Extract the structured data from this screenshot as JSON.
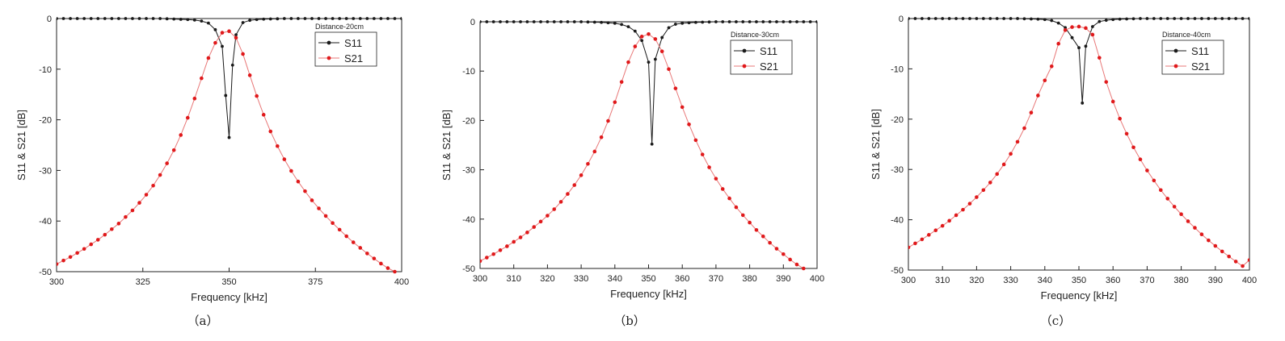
{
  "colors": {
    "s11": "#1a1a1a",
    "s21": "#e0191b",
    "s21_line": "#e87878",
    "axis": "#222222"
  },
  "chart_data": [
    {
      "type": "line",
      "caption": "（a）",
      "legend_title": "Distance-20cm",
      "legend_position": "top-right",
      "xlabel": "Frequency [kHz]",
      "ylabel": "S11 & S21 [dB]",
      "xlim": [
        300,
        400
      ],
      "ylim": [
        -50,
        0
      ],
      "xticks": [
        300,
        325,
        350,
        375,
        400
      ],
      "xtick_labels": [
        "300",
        "325",
        "350",
        "375",
        "400"
      ],
      "yticks": [
        0,
        -10,
        -20,
        -30,
        -40,
        -50
      ],
      "ytick_labels": [
        "0",
        "-10",
        "-20",
        "-30",
        "-40",
        "-50"
      ],
      "grid": false,
      "series": [
        {
          "name": "S11",
          "x": [
            300,
            302,
            304,
            306,
            308,
            310,
            312,
            314,
            316,
            318,
            320,
            322,
            324,
            326,
            328,
            330,
            332,
            334,
            336,
            338,
            340,
            342,
            344,
            346,
            348,
            349,
            350,
            351,
            352,
            354,
            356,
            358,
            360,
            362,
            364,
            366,
            368,
            370,
            372,
            374,
            376,
            378,
            380,
            382,
            384,
            386,
            388,
            390,
            392,
            394,
            396,
            398,
            400
          ],
          "y": [
            0,
            0,
            0,
            0,
            0,
            0,
            0,
            0,
            0,
            0,
            0,
            0,
            0,
            0,
            0,
            0,
            -0.05,
            -0.1,
            -0.15,
            -0.2,
            -0.3,
            -0.5,
            -0.9,
            -2.2,
            -5.5,
            -15.2,
            -23.5,
            -9.2,
            -3.2,
            -0.8,
            -0.35,
            -0.2,
            -0.12,
            -0.08,
            -0.05,
            0,
            0,
            0,
            0,
            0,
            0,
            0,
            0,
            0,
            0,
            0,
            0,
            0,
            0,
            0,
            0,
            0,
            0
          ]
        },
        {
          "name": "S21",
          "x": [
            300,
            302,
            304,
            306,
            308,
            310,
            312,
            314,
            316,
            318,
            320,
            322,
            324,
            326,
            328,
            330,
            332,
            334,
            336,
            338,
            340,
            342,
            344,
            346,
            348,
            350,
            352,
            354,
            356,
            358,
            360,
            362,
            364,
            366,
            368,
            370,
            372,
            374,
            376,
            378,
            380,
            382,
            384,
            386,
            388,
            390,
            392,
            394,
            396,
            398
          ],
          "y": [
            -48.5,
            -47.8,
            -47.1,
            -46.3,
            -45.5,
            -44.6,
            -43.7,
            -42.7,
            -41.6,
            -40.5,
            -39.2,
            -37.9,
            -36.4,
            -34.8,
            -33.0,
            -30.9,
            -28.6,
            -26.0,
            -23.0,
            -19.6,
            -15.8,
            -11.8,
            -7.8,
            -4.8,
            -2.8,
            -2.5,
            -3.8,
            -7.0,
            -11.2,
            -15.3,
            -19.0,
            -22.3,
            -25.2,
            -27.8,
            -30.1,
            -32.2,
            -34.1,
            -35.9,
            -37.5,
            -39.0,
            -40.4,
            -41.7,
            -43.0,
            -44.2,
            -45.3,
            -46.4,
            -47.4,
            -48.4,
            -49.3,
            -50.0
          ]
        }
      ]
    },
    {
      "type": "line",
      "caption": "（b）",
      "legend_title": "Distance-30cm",
      "legend_position": "top-right",
      "xlabel": "Frequency [kHz]",
      "ylabel": "S11 & S21 [dB]",
      "xlim": [
        300,
        400
      ],
      "ylim": [
        -50,
        0
      ],
      "xticks": [
        300,
        310,
        320,
        330,
        340,
        350,
        360,
        370,
        380,
        390,
        400
      ],
      "xtick_labels": [
        "300",
        "310",
        "320",
        "330",
        "340",
        "350",
        "360",
        "370",
        "380",
        "390",
        "400"
      ],
      "yticks": [
        0,
        -10,
        -20,
        -30,
        -40,
        -50
      ],
      "ytick_labels": [
        "0",
        "-10",
        "-20",
        "-30",
        "-40",
        "-50"
      ],
      "grid": false,
      "series": [
        {
          "name": "S11",
          "x": [
            300,
            302,
            304,
            306,
            308,
            310,
            312,
            314,
            316,
            318,
            320,
            322,
            324,
            326,
            328,
            330,
            332,
            334,
            336,
            338,
            340,
            342,
            344,
            346,
            348,
            350,
            351,
            352,
            354,
            356,
            358,
            360,
            362,
            364,
            366,
            368,
            370,
            372,
            374,
            376,
            378,
            380,
            382,
            384,
            386,
            388,
            390,
            392,
            394,
            396,
            398,
            400
          ],
          "y": [
            0,
            0,
            0,
            0,
            0,
            0,
            0,
            0,
            0,
            0,
            0,
            0,
            0,
            0,
            0,
            0,
            -0.05,
            -0.08,
            -0.12,
            -0.2,
            -0.3,
            -0.55,
            -1.0,
            -1.9,
            -3.8,
            -8.2,
            -24.8,
            -7.6,
            -3.2,
            -1.2,
            -0.5,
            -0.3,
            -0.2,
            -0.12,
            -0.08,
            -0.05,
            0,
            0,
            0,
            0,
            0,
            0,
            0,
            0,
            0,
            0,
            0,
            0,
            0,
            0,
            0,
            0
          ]
        },
        {
          "name": "S21",
          "x": [
            300,
            302,
            304,
            306,
            308,
            310,
            312,
            314,
            316,
            318,
            320,
            322,
            324,
            326,
            328,
            330,
            332,
            334,
            336,
            338,
            340,
            342,
            344,
            346,
            348,
            350,
            352,
            354,
            356,
            358,
            360,
            362,
            364,
            366,
            368,
            370,
            372,
            374,
            376,
            378,
            380,
            382,
            384,
            386,
            388,
            390,
            392,
            394,
            396
          ],
          "y": [
            -48.5,
            -47.8,
            -47.1,
            -46.3,
            -45.5,
            -44.6,
            -43.7,
            -42.7,
            -41.6,
            -40.5,
            -39.3,
            -38.0,
            -36.5,
            -34.9,
            -33.1,
            -31.1,
            -28.8,
            -26.3,
            -23.4,
            -20.1,
            -16.3,
            -12.2,
            -8.2,
            -5.0,
            -3.0,
            -2.5,
            -3.5,
            -6.0,
            -9.6,
            -13.5,
            -17.3,
            -20.8,
            -24.0,
            -26.9,
            -29.5,
            -31.8,
            -33.9,
            -35.8,
            -37.6,
            -39.2,
            -40.7,
            -42.2,
            -43.5,
            -44.8,
            -46.0,
            -47.1,
            -48.2,
            -49.2,
            -50.0
          ]
        }
      ]
    },
    {
      "type": "line",
      "caption": "（c）",
      "legend_title": "Distance-40cm",
      "legend_position": "top-right",
      "xlabel": "Frequency [kHz]",
      "ylabel": "S11 & S21 [dB]",
      "xlim": [
        300,
        400
      ],
      "ylim": [
        -50,
        0
      ],
      "xticks": [
        300,
        310,
        320,
        330,
        340,
        350,
        360,
        370,
        380,
        390,
        400
      ],
      "xtick_labels": [
        "300",
        "310",
        "320",
        "330",
        "340",
        "350",
        "360",
        "370",
        "380",
        "390",
        "400"
      ],
      "yticks": [
        0,
        -10,
        -20,
        -30,
        -40,
        -50
      ],
      "ytick_labels": [
        "0",
        "-10",
        "-20",
        "-30",
        "-40",
        "-50"
      ],
      "grid": false,
      "series": [
        {
          "name": "S11",
          "x": [
            300,
            302,
            304,
            306,
            308,
            310,
            312,
            314,
            316,
            318,
            320,
            322,
            324,
            326,
            328,
            330,
            332,
            334,
            336,
            338,
            340,
            342,
            344,
            346,
            348,
            350,
            351,
            352,
            354,
            356,
            358,
            360,
            362,
            364,
            366,
            368,
            370,
            372,
            374,
            376,
            378,
            380,
            382,
            384,
            386,
            388,
            390,
            392,
            394,
            396,
            398,
            400
          ],
          "y": [
            0,
            0,
            0,
            0,
            0,
            0,
            0,
            0,
            0,
            0,
            0,
            0,
            0,
            0,
            0,
            0,
            0,
            -0.05,
            -0.08,
            -0.12,
            -0.2,
            -0.4,
            -0.9,
            -1.8,
            -3.8,
            -5.8,
            -16.8,
            -5.5,
            -1.6,
            -0.6,
            -0.35,
            -0.2,
            -0.12,
            -0.08,
            -0.05,
            0,
            0,
            0,
            0,
            0,
            0,
            0,
            0,
            0,
            0,
            0,
            0,
            0,
            0,
            0,
            0,
            0
          ]
        },
        {
          "name": "S21",
          "x": [
            300,
            302,
            304,
            306,
            308,
            310,
            312,
            314,
            316,
            318,
            320,
            322,
            324,
            326,
            328,
            330,
            332,
            334,
            336,
            338,
            340,
            342,
            344,
            346,
            348,
            350,
            352,
            354,
            356,
            358,
            360,
            362,
            364,
            366,
            368,
            370,
            372,
            374,
            376,
            378,
            380,
            382,
            384,
            386,
            388,
            390,
            392,
            394,
            396,
            398,
            400
          ],
          "y": [
            -45.5,
            -44.7,
            -43.9,
            -43.0,
            -42.1,
            -41.2,
            -40.2,
            -39.1,
            -38.0,
            -36.8,
            -35.5,
            -34.1,
            -32.6,
            -30.9,
            -29.0,
            -26.9,
            -24.5,
            -21.8,
            -18.7,
            -15.3,
            -12.3,
            -9.5,
            -5.0,
            -2.3,
            -1.7,
            -1.6,
            -1.9,
            -3.2,
            -7.8,
            -12.6,
            -16.5,
            -19.9,
            -22.9,
            -25.6,
            -28.0,
            -30.2,
            -32.2,
            -34.1,
            -35.8,
            -37.4,
            -38.9,
            -40.3,
            -41.6,
            -42.9,
            -44.1,
            -45.2,
            -46.3,
            -47.3,
            -48.3,
            -49.2,
            -48.0
          ]
        }
      ]
    }
  ]
}
